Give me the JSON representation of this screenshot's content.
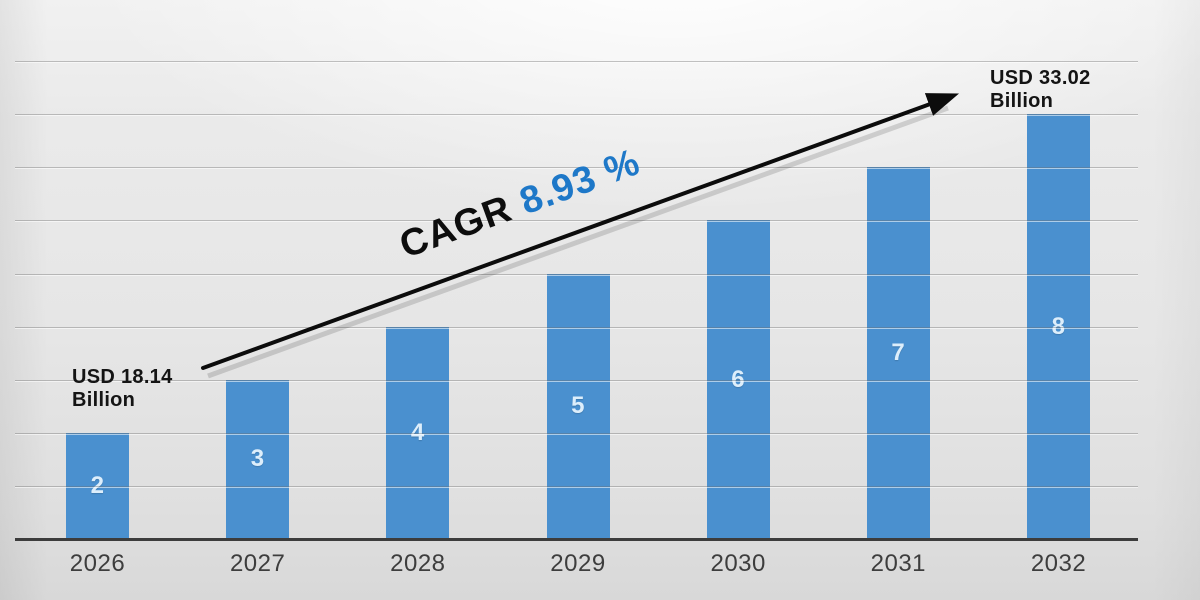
{
  "chart_data": {
    "type": "bar",
    "title": "",
    "xlabel": "",
    "ylabel": "",
    "categories": [
      "2026",
      "2027",
      "2028",
      "2029",
      "2030",
      "2031",
      "2032"
    ],
    "values": [
      2,
      3,
      4,
      5,
      6,
      7,
      8
    ],
    "bar_labels": [
      "2",
      "3",
      "4",
      "5",
      "6",
      "7",
      "8"
    ],
    "ylim": [
      0,
      9
    ],
    "grid": true,
    "grid_interval": 1,
    "legend": "none",
    "annotations": {
      "start": {
        "line1": "USD 18.14",
        "line2": "Billion"
      },
      "end": {
        "line1": "USD 33.02",
        "line2": "Billion"
      },
      "cagr_prefix": "CAGR",
      "cagr_value": "8.93 %"
    },
    "colors": {
      "bar": "#4a90cf",
      "bar_label": "#ddeefb",
      "grid": "rgba(110,110,110,0.40)",
      "axis": "#3c3c3c",
      "year_label": "#3d3d3d",
      "annotation_text": "#141414",
      "cagr_prefix": "#0d0d0d",
      "cagr_value": "#1e78c8",
      "arrow": "#0c0c0c"
    }
  }
}
